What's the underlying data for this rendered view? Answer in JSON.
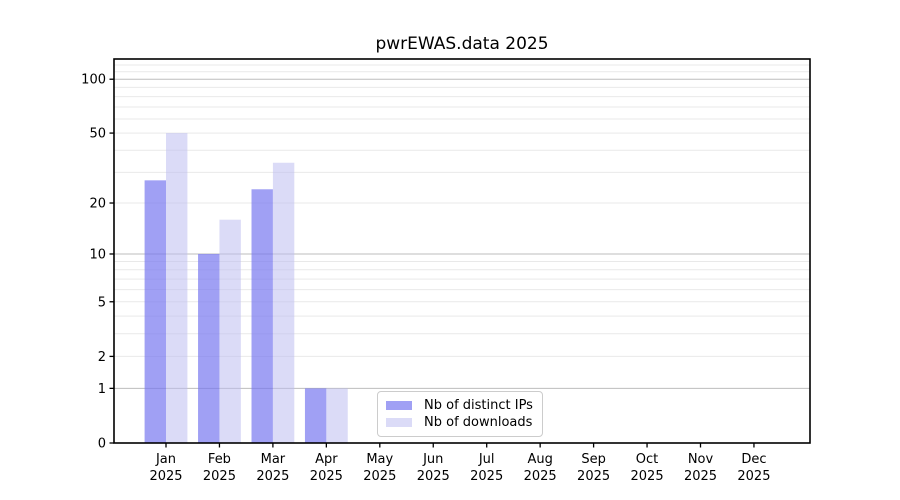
{
  "chart_data": {
    "type": "bar",
    "title": "pwrEWAS.data 2025",
    "categories": [
      "Jan 2025",
      "Feb 2025",
      "Mar 2025",
      "Apr 2025",
      "May 2025",
      "Jun 2025",
      "Jul 2025",
      "Aug 2025",
      "Sep 2025",
      "Oct 2025",
      "Nov 2025",
      "Dec 2025"
    ],
    "months": [
      "Jan",
      "Feb",
      "Mar",
      "Apr",
      "May",
      "Jun",
      "Jul",
      "Aug",
      "Sep",
      "Oct",
      "Nov",
      "Dec"
    ],
    "year": "2025",
    "series": [
      {
        "name": "Nb of distinct IPs",
        "values": [
          27,
          10,
          24,
          1,
          0,
          0,
          0,
          0,
          0,
          0,
          0,
          0
        ],
        "fill": "#7878f0",
        "opacity": 0.7
      },
      {
        "name": "Nb of downloads",
        "values": [
          50,
          16,
          34,
          1,
          0,
          0,
          0,
          0,
          0,
          0,
          0,
          0
        ],
        "fill": "#bebef0",
        "opacity": 0.55
      }
    ],
    "yscale": "log1p",
    "yticks": [
      0,
      1,
      2,
      5,
      10,
      20,
      50,
      100
    ],
    "ylim": [
      0,
      130
    ],
    "grid": "horizontal",
    "legend_position": "bottom-center-inside",
    "colors": {
      "bar_distinct_ips": "#a3a3f3",
      "bar_downloads": "#d8d8f7",
      "grid_major": "#bdbdbd",
      "grid_minor": "#e9e9e9",
      "axis": "#000000"
    }
  }
}
